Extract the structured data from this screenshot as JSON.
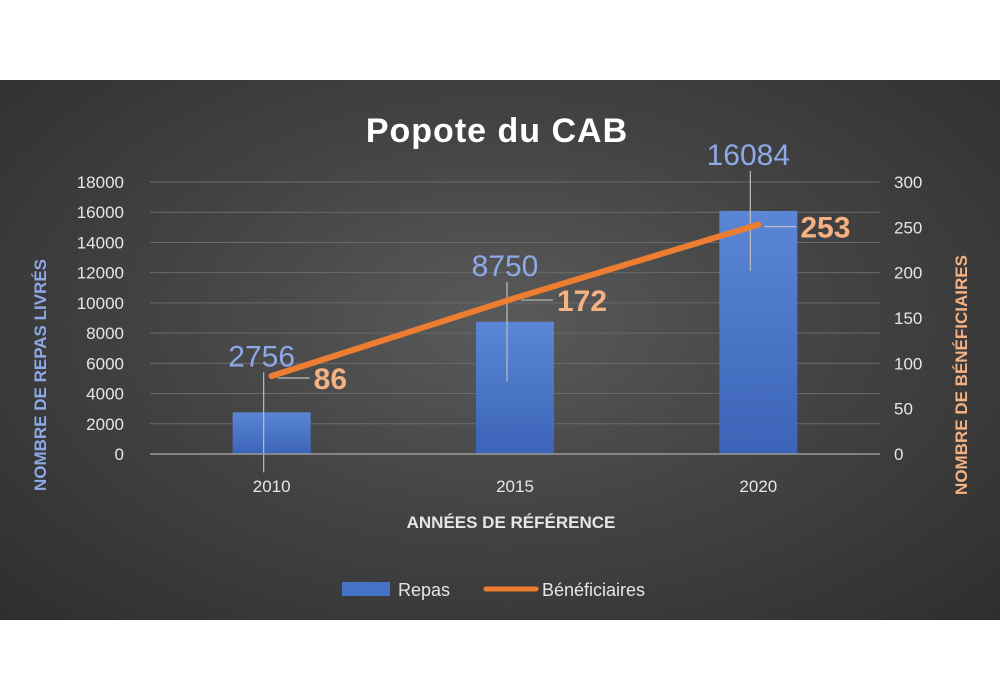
{
  "chart_data": {
    "type": "bar",
    "title": "Popote du CAB",
    "xlabel": "ANNÉES DE RÉFÉRENCE",
    "ylabel": "NOMBRE DE REPAS LIVRÉS",
    "y2label": "NOMBRE DE BÉNÉFICIAIRES",
    "categories": [
      "2010",
      "2015",
      "2020"
    ],
    "ylim": [
      0,
      18000
    ],
    "yticks": [
      0,
      2000,
      4000,
      6000,
      8000,
      10000,
      12000,
      14000,
      16000,
      18000
    ],
    "y2lim": [
      0,
      300
    ],
    "y2ticks": [
      0,
      50,
      100,
      150,
      200,
      250,
      300
    ],
    "grid": true,
    "legend_position": "bottom",
    "series": [
      {
        "name": "Repas",
        "type": "bar",
        "axis": "left",
        "color": "#4472c4",
        "values": [
          2756,
          8750,
          16084
        ]
      },
      {
        "name": "Bénéficiaires",
        "type": "line",
        "axis": "right",
        "color": "#ed7d31",
        "values": [
          86,
          172,
          253
        ]
      }
    ]
  }
}
